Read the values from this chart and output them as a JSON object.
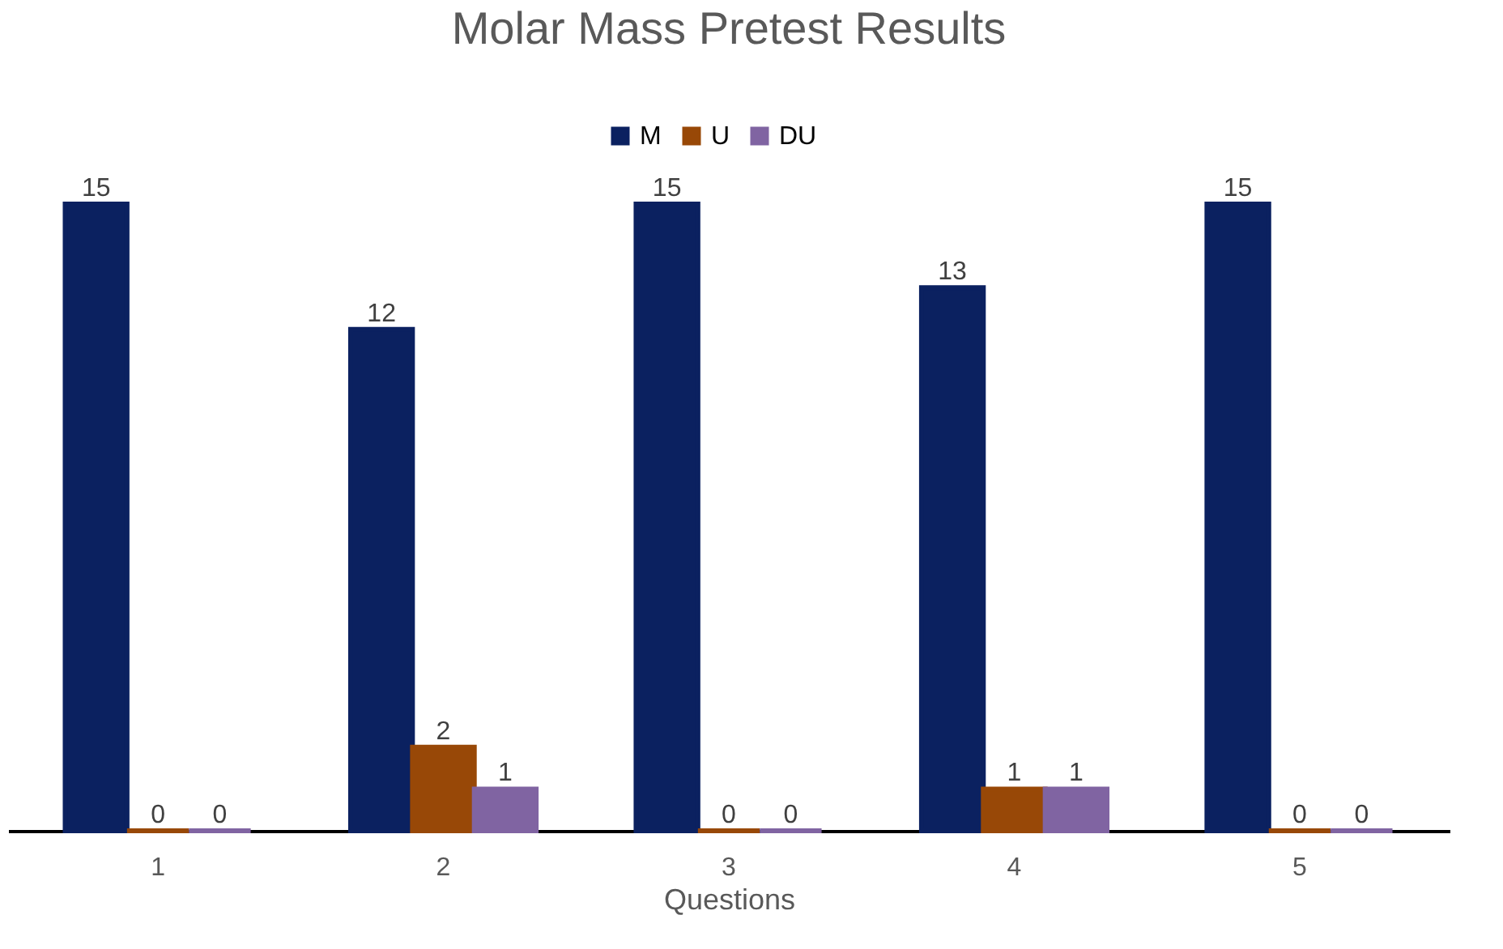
{
  "chart_data": {
    "type": "bar",
    "title": "Molar Mass Pretest Results",
    "xlabel": "Questions",
    "categories": [
      "1",
      "2",
      "3",
      "4",
      "5"
    ],
    "series": [
      {
        "name": "M",
        "color": "#0b2160",
        "values": [
          15,
          12,
          15,
          13,
          15
        ]
      },
      {
        "name": "U",
        "color": "#984807",
        "values": [
          0,
          2,
          0,
          1,
          0
        ]
      },
      {
        "name": "DU",
        "color": "#8064a2",
        "values": [
          0,
          1,
          0,
          1,
          0
        ]
      }
    ],
    "data_labels": true,
    "legend": "top",
    "grid": false
  }
}
